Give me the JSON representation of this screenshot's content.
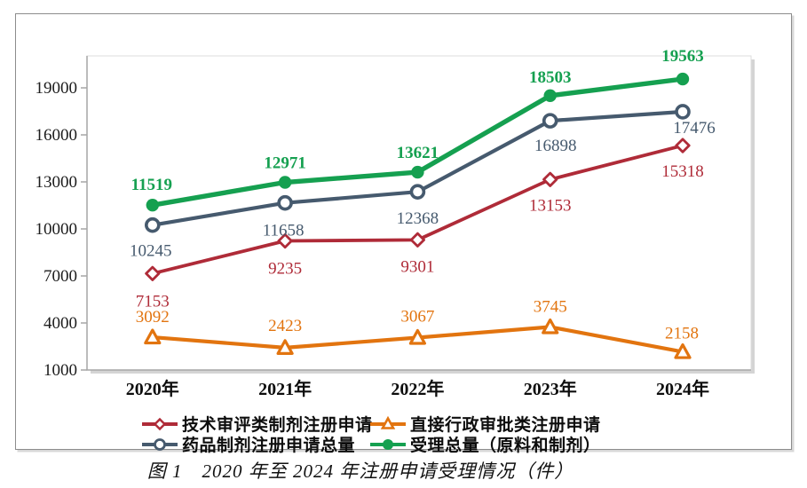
{
  "figure": {
    "caption": "图 1　2020 年至 2024 年注册申请受理情况（件）"
  },
  "chart_data": {
    "type": "line",
    "title": "",
    "xlabel": "",
    "ylabel": "",
    "categories": [
      "2020年",
      "2021年",
      "2022年",
      "2023年",
      "2024年"
    ],
    "series": [
      {
        "name": "技术审评类制剂注册申请",
        "values": [
          7153,
          9235,
          9301,
          13153,
          15318
        ],
        "color": "#af2b38",
        "marker": "diamond-open",
        "label_position": "below",
        "label_bold": false
      },
      {
        "name": "直接行政审批类注册申请",
        "values": [
          3092,
          2423,
          3067,
          3745,
          2158
        ],
        "color": "#e2740f",
        "marker": "triangle-open",
        "label_position": "above",
        "label_bold": false
      },
      {
        "name": "药品制剂注册申请总量",
        "values": [
          10245,
          11658,
          12368,
          16898,
          17476
        ],
        "color": "#465a6e",
        "marker": "circle-open",
        "label_position": "below",
        "label_bold": false
      },
      {
        "name": "受理总量（原料和制剂）",
        "values": [
          11519,
          12971,
          13621,
          18503,
          19563
        ],
        "color": "#15a050",
        "marker": "circle-filled",
        "label_position": "above",
        "label_bold": true
      }
    ],
    "y_axis": {
      "tick_labels": [
        "1000",
        "4000",
        "7000",
        "10000",
        "13000",
        "16000",
        "19000"
      ],
      "ticks": [
        1000,
        4000,
        7000,
        10000,
        13000,
        16000,
        19000
      ],
      "min": 1000,
      "max": 21000
    },
    "grid": false,
    "legend_position": "bottom",
    "legend_columns": 2,
    "legend_entries": [
      "技术审评类制剂注册申请",
      "直接行政审批类注册申请",
      "药品制剂注册申请总量",
      "受理总量（原料和制剂）"
    ]
  }
}
